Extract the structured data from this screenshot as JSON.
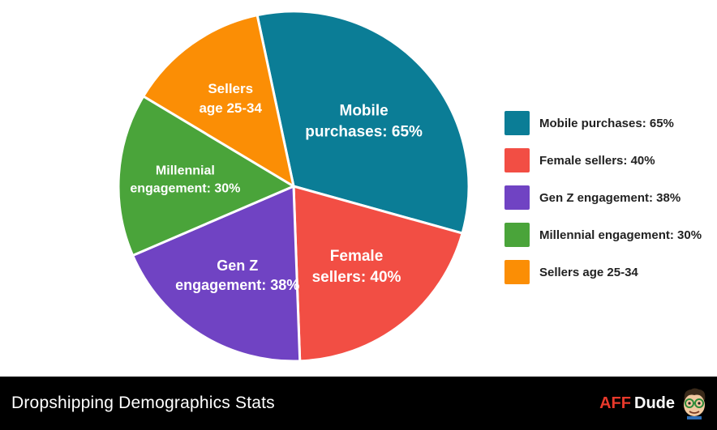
{
  "chart_data": {
    "type": "pie",
    "title": "",
    "slices": [
      {
        "label_lines": [
          "Mobile",
          "purchases: 65%"
        ],
        "legend": "Mobile purchases: 65%",
        "value": 65,
        "color": "#0b7d96"
      },
      {
        "label_lines": [
          "Female",
          "sellers: 40%"
        ],
        "legend": "Female sellers: 40%",
        "value": 40,
        "color": "#f24e44"
      },
      {
        "label_lines": [
          "Gen Z",
          "engagement: 38%"
        ],
        "legend": "Gen Z engagement: 38%",
        "value": 38,
        "color": "#7043c3"
      },
      {
        "label_lines": [
          "Millennial",
          "engagement: 30%"
        ],
        "legend": "Millennial engagement: 30%",
        "value": 30,
        "color": "#4aa43a"
      },
      {
        "label_lines": [
          "Sellers",
          "age 25-34"
        ],
        "legend": "Sellers age 25-34",
        "value": 26,
        "color": "#fb8e05"
      }
    ],
    "legend_position": "right"
  },
  "footer": {
    "title": "Dropshipping Demographics Stats",
    "brand_aff": "AFF",
    "brand_dude": "Dude"
  },
  "icons": {
    "brand_mascot": "cartoon-face-with-glasses-icon"
  }
}
